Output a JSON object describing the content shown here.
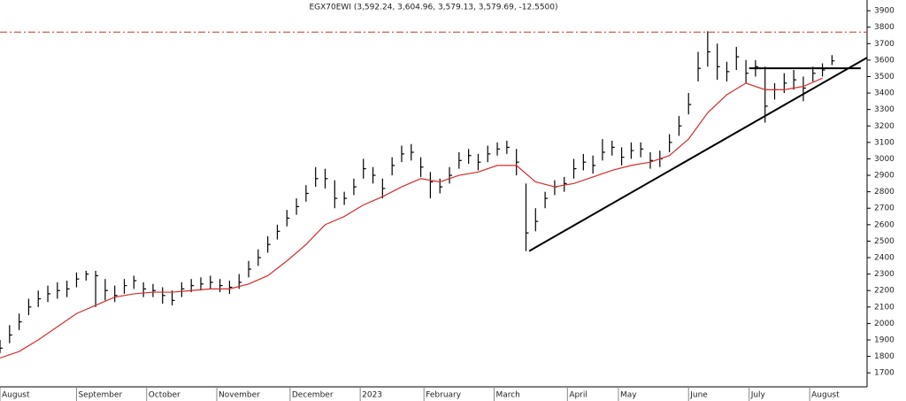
{
  "chart_data": {
    "type": "ohlc",
    "title": "EGX70EWI (3,592.24, 3,604.96, 3,579.13, 3,579.69, -12.5500)",
    "xlim": [
      0,
      272
    ],
    "ylim": [
      1615,
      3965
    ],
    "yticks": [
      1700,
      1800,
      1900,
      2000,
      2100,
      2200,
      2300,
      2400,
      2500,
      2600,
      2700,
      2800,
      2900,
      3000,
      3100,
      3200,
      3300,
      3400,
      3500,
      3600,
      3700,
      3800,
      3900
    ],
    "xticks": [
      {
        "value": 0,
        "label": "August"
      },
      {
        "value": 24,
        "label": "September"
      },
      {
        "value": 46,
        "label": "October"
      },
      {
        "value": 68,
        "label": "November"
      },
      {
        "value": 91,
        "label": "December"
      },
      {
        "value": 113,
        "label": "2023"
      },
      {
        "value": 133,
        "label": "February"
      },
      {
        "value": 155,
        "label": "March"
      },
      {
        "value": 178,
        "label": "April"
      },
      {
        "value": 194,
        "label": "May"
      },
      {
        "value": 216,
        "label": "June"
      },
      {
        "value": 235,
        "label": "July"
      },
      {
        "value": 254,
        "label": "August"
      }
    ],
    "ohlc": {
      "color": "#000000",
      "x": [
        0,
        3,
        6,
        9,
        12,
        15,
        18,
        21,
        24,
        27,
        30,
        33,
        36,
        39,
        42,
        45,
        48,
        51,
        54,
        57,
        60,
        63,
        66,
        69,
        72,
        75,
        78,
        81,
        84,
        87,
        90,
        93,
        96,
        99,
        102,
        105,
        108,
        111,
        114,
        117,
        120,
        123,
        126,
        129,
        132,
        135,
        138,
        141,
        144,
        147,
        150,
        153,
        156,
        159,
        162,
        165,
        168,
        171,
        174,
        177,
        180,
        183,
        186,
        189,
        192,
        195,
        198,
        201,
        204,
        207,
        210,
        213,
        216,
        219,
        222,
        225,
        228,
        231,
        234,
        237,
        240,
        243,
        246,
        249,
        252,
        255,
        258,
        261
      ],
      "high": [
        1900,
        1990,
        2060,
        2150,
        2200,
        2230,
        2250,
        2260,
        2310,
        2320,
        2320,
        2270,
        2230,
        2270,
        2290,
        2250,
        2240,
        2220,
        2200,
        2250,
        2270,
        2280,
        2290,
        2270,
        2260,
        2300,
        2380,
        2450,
        2530,
        2600,
        2690,
        2760,
        2840,
        2950,
        2940,
        2870,
        2800,
        2880,
        3000,
        2950,
        2880,
        3010,
        3080,
        3090,
        3010,
        2920,
        2880,
        2950,
        3040,
        3060,
        3030,
        3080,
        3100,
        3110,
        3060,
        2850,
        2700,
        2800,
        2870,
        2890,
        3000,
        3030,
        3020,
        3120,
        3110,
        3070,
        3100,
        3100,
        3040,
        3050,
        3150,
        3260,
        3400,
        3650,
        3775,
        3700,
        3590,
        3680,
        3600,
        3600,
        3560,
        3460,
        3520,
        3540,
        3500,
        3560,
        3580,
        3630
      ],
      "low": [
        1820,
        1880,
        1960,
        2050,
        2100,
        2130,
        2150,
        2160,
        2220,
        2260,
        2100,
        2140,
        2130,
        2180,
        2210,
        2160,
        2160,
        2120,
        2110,
        2160,
        2190,
        2200,
        2210,
        2190,
        2180,
        2210,
        2280,
        2350,
        2430,
        2510,
        2590,
        2660,
        2740,
        2830,
        2820,
        2700,
        2720,
        2780,
        2880,
        2850,
        2760,
        2900,
        2980,
        2990,
        2890,
        2760,
        2790,
        2850,
        2940,
        2970,
        2930,
        2980,
        3020,
        3030,
        2900,
        2440,
        2560,
        2700,
        2780,
        2800,
        2880,
        2930,
        2910,
        2990,
        3020,
        2960,
        3000,
        3010,
        2940,
        2950,
        3040,
        3140,
        3270,
        3470,
        3560,
        3480,
        3470,
        3540,
        3460,
        3500,
        3220,
        3360,
        3400,
        3420,
        3350,
        3470,
        3500,
        3570
      ],
      "close": [
        1850,
        1930,
        2010,
        2100,
        2150,
        2180,
        2200,
        2210,
        2270,
        2300,
        2290,
        2200,
        2170,
        2230,
        2260,
        2210,
        2200,
        2170,
        2140,
        2210,
        2230,
        2240,
        2250,
        2230,
        2220,
        2250,
        2330,
        2400,
        2480,
        2560,
        2640,
        2710,
        2790,
        2880,
        2880,
        2760,
        2760,
        2830,
        2940,
        2900,
        2820,
        2960,
        3030,
        3040,
        2950,
        2860,
        2830,
        2900,
        2990,
        3020,
        2980,
        3030,
        3060,
        3070,
        2980,
        2550,
        2620,
        2760,
        2830,
        2850,
        2940,
        2980,
        2960,
        3040,
        3070,
        3010,
        3050,
        3060,
        2990,
        3000,
        3100,
        3200,
        3330,
        3550,
        3650,
        3560,
        3530,
        3620,
        3520,
        3560,
        3320,
        3420,
        3460,
        3480,
        3430,
        3520,
        3540,
        3595
      ]
    },
    "ma": {
      "color": "#d62b2b",
      "x": [
        0,
        6,
        12,
        18,
        24,
        30,
        36,
        42,
        48,
        54,
        60,
        66,
        72,
        78,
        84,
        90,
        96,
        102,
        108,
        114,
        120,
        126,
        132,
        138,
        144,
        150,
        156,
        162,
        168,
        174,
        180,
        186,
        192,
        198,
        204,
        210,
        216,
        222,
        228,
        234,
        240,
        246,
        252,
        258
      ],
      "values": [
        1790,
        1830,
        1900,
        1980,
        2060,
        2110,
        2160,
        2180,
        2190,
        2190,
        2200,
        2210,
        2210,
        2240,
        2290,
        2380,
        2480,
        2600,
        2650,
        2720,
        2770,
        2830,
        2880,
        2860,
        2900,
        2920,
        2960,
        2960,
        2860,
        2830,
        2850,
        2890,
        2930,
        2960,
        2980,
        3020,
        3120,
        3280,
        3390,
        3460,
        3420,
        3420,
        3440,
        3490
      ]
    },
    "lines": [
      {
        "x": [
          166,
          272
        ],
        "values": [
          2440,
          3615
        ],
        "color": "#000000"
      },
      {
        "x": [
          235,
          270
        ],
        "values": [
          3550,
          3550
        ],
        "color": "#000000"
      },
      {
        "x": [
          0,
          272
        ],
        "values": [
          3770,
          3770
        ],
        "color": "#c0392b",
        "dashed": true
      }
    ]
  }
}
